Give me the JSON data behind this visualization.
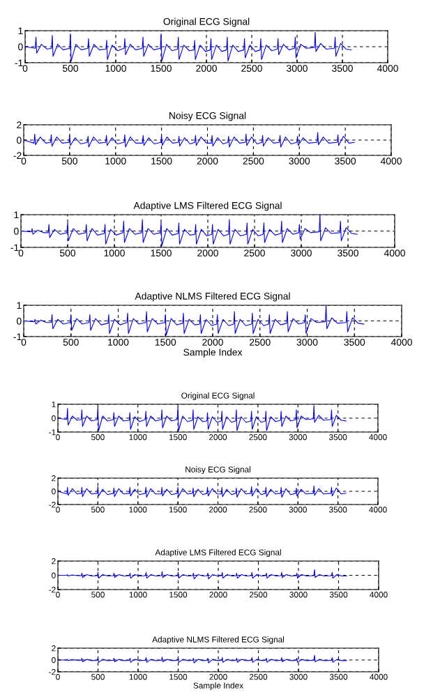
{
  "chart_data": [
    {
      "type": "line",
      "title": "Original ECG Signal",
      "xlim": [
        0,
        4000
      ],
      "xticks": [
        0,
        500,
        1000,
        1500,
        2000,
        2500,
        3000,
        3500,
        4000
      ],
      "ylim": [
        -1,
        1
      ],
      "yticks": [
        -1,
        0,
        1
      ],
      "grid": true,
      "line_style": "solid",
      "x": [
        0,
        112,
        120,
        128,
        180,
        240,
        292,
        300,
        308,
        360,
        420,
        492,
        500,
        508,
        560,
        620,
        692,
        700,
        708,
        760,
        820,
        892,
        900,
        908,
        960,
        1020,
        1092,
        1100,
        1108,
        1160,
        1220,
        1292,
        1300,
        1308,
        1360,
        1420,
        1492,
        1500,
        1508,
        1560,
        1620,
        1682,
        1690,
        1698,
        1750,
        1810,
        1862,
        1870,
        1878,
        1930,
        1990,
        2042,
        2050,
        2058,
        2110,
        2170,
        2222,
        2230,
        2238,
        2290,
        2350,
        2412,
        2420,
        2428,
        2480,
        2540,
        2592,
        2600,
        2608,
        2660,
        2720,
        2782,
        2790,
        2798,
        2850,
        2910,
        2972,
        2980,
        2988,
        3040,
        3100,
        3192,
        3200,
        3208,
        3260,
        3320,
        3412,
        3420,
        3428,
        3480,
        3540,
        3600
      ],
      "series": [
        {
          "color": "#0000ff",
          "values": [
            0,
            -0.1,
            0.6,
            -0.4,
            0.15,
            -0.15,
            -0.1,
            0.7,
            -0.6,
            0.15,
            -0.2,
            -0.1,
            0.8,
            -0.9,
            0.15,
            -0.2,
            -0.1,
            0.5,
            -0.6,
            0.15,
            -0.2,
            -0.15,
            0.4,
            -0.8,
            0.1,
            -0.25,
            -0.1,
            0.5,
            -0.5,
            0.15,
            -0.2,
            -0.1,
            0.6,
            -0.6,
            0.15,
            -0.2,
            -0.1,
            0.8,
            -0.9,
            0.15,
            -0.25,
            -0.15,
            0.6,
            -0.8,
            0.1,
            -0.25,
            -0.2,
            0.4,
            -0.8,
            0.1,
            -0.3,
            -0.2,
            0.5,
            -0.8,
            0.1,
            -0.3,
            -0.2,
            0.6,
            -0.9,
            0.1,
            -0.3,
            -0.2,
            0.5,
            -0.7,
            0.1,
            -0.3,
            -0.2,
            0.5,
            -0.8,
            0.1,
            -0.25,
            -0.15,
            0.5,
            -0.5,
            0.15,
            -0.2,
            -0.1,
            0.6,
            -0.7,
            0.15,
            -0.1,
            -0.05,
            0.9,
            -0.3,
            0.2,
            -0.15,
            -0.1,
            0.6,
            -0.6,
            0.2,
            -0.15,
            -0.2
          ]
        }
      ]
    },
    {
      "type": "line",
      "title": "Noisy ECG Signal",
      "xlim": [
        0,
        4000
      ],
      "xticks": [
        0,
        500,
        1000,
        1500,
        2000,
        2500,
        3000,
        3500,
        4000
      ],
      "ylim": [
        -2,
        2
      ],
      "yticks": [
        -2,
        0,
        2
      ],
      "grid": true,
      "line_style": "solid",
      "x": [
        0,
        112,
        120,
        128,
        180,
        240,
        292,
        300,
        308,
        360,
        420,
        492,
        500,
        508,
        560,
        620,
        692,
        700,
        708,
        760,
        820,
        892,
        900,
        908,
        960,
        1020,
        1092,
        1100,
        1108,
        1160,
        1220,
        1292,
        1300,
        1308,
        1360,
        1420,
        1492,
        1500,
        1508,
        1560,
        1620,
        1682,
        1690,
        1698,
        1750,
        1810,
        1862,
        1870,
        1878,
        1930,
        1990,
        2042,
        2050,
        2058,
        2110,
        2170,
        2222,
        2230,
        2238,
        2290,
        2350,
        2412,
        2420,
        2428,
        2480,
        2540,
        2592,
        2600,
        2608,
        2660,
        2720,
        2782,
        2790,
        2798,
        2850,
        2910,
        2972,
        2980,
        2988,
        3040,
        3100,
        3192,
        3200,
        3208,
        3260,
        3320,
        3412,
        3420,
        3428,
        3480,
        3540,
        3600
      ],
      "series": [
        {
          "color": "#0000ff",
          "values": [
            0,
            -0.4,
            0.8,
            -0.6,
            0.4,
            -0.4,
            -0.3,
            0.7,
            -0.8,
            0.4,
            -0.4,
            -0.3,
            0.6,
            -0.7,
            0.3,
            -0.5,
            -0.3,
            0.5,
            -0.9,
            0.4,
            -0.4,
            -0.3,
            0.6,
            -0.7,
            0.3,
            -0.5,
            -0.3,
            0.7,
            -0.9,
            0.4,
            -0.4,
            -0.4,
            0.6,
            -0.7,
            0.3,
            -0.5,
            -0.3,
            0.6,
            -0.7,
            0.4,
            -0.4,
            -0.3,
            0.5,
            -0.8,
            0.3,
            -0.5,
            -0.3,
            0.6,
            -0.7,
            0.4,
            -0.4,
            -0.4,
            0.6,
            -0.8,
            0.3,
            -0.5,
            -0.3,
            0.5,
            -0.9,
            0.4,
            -0.4,
            -0.3,
            0.8,
            -0.7,
            0.4,
            -0.5,
            -0.3,
            0.6,
            -0.8,
            0.3,
            -0.4,
            -0.3,
            0.6,
            -0.9,
            0.4,
            -0.5,
            -0.3,
            0.5,
            -0.7,
            0.3,
            -0.4,
            -0.3,
            1.0,
            -0.6,
            0.4,
            -0.4,
            -0.3,
            0.7,
            -0.7,
            0.5,
            -0.4,
            -0.3
          ]
        }
      ]
    },
    {
      "type": "line",
      "title": "Adaptive LMS Filtered ECG Signal",
      "xlim": [
        0,
        4000
      ],
      "xticks": [
        0,
        500,
        1000,
        1500,
        2000,
        2500,
        3000,
        3500,
        4000
      ],
      "ylim": [
        -1,
        1
      ],
      "yticks": [
        -1,
        0,
        1
      ],
      "grid": true,
      "line_style": "solid",
      "x": [
        0,
        112,
        120,
        128,
        180,
        240,
        292,
        300,
        308,
        360,
        420,
        492,
        500,
        508,
        560,
        620,
        692,
        700,
        708,
        760,
        820,
        892,
        900,
        908,
        960,
        1020,
        1092,
        1100,
        1108,
        1160,
        1220,
        1292,
        1300,
        1308,
        1360,
        1420,
        1492,
        1500,
        1508,
        1560,
        1620,
        1682,
        1690,
        1698,
        1750,
        1810,
        1862,
        1870,
        1878,
        1930,
        1990,
        2042,
        2050,
        2058,
        2110,
        2170,
        2222,
        2230,
        2238,
        2290,
        2350,
        2412,
        2420,
        2428,
        2480,
        2540,
        2592,
        2600,
        2608,
        2660,
        2720,
        2782,
        2790,
        2798,
        2850,
        2910,
        2972,
        2980,
        2988,
        3040,
        3100,
        3192,
        3200,
        3208,
        3260,
        3320,
        3412,
        3420,
        3428,
        3480,
        3540,
        3600
      ],
      "series": [
        {
          "color": "#0000ff",
          "values": [
            0,
            -0.05,
            0.15,
            -0.2,
            0.05,
            -0.1,
            -0.1,
            0.4,
            -0.4,
            0.1,
            -0.2,
            -0.1,
            0.5,
            -0.6,
            0.15,
            -0.2,
            -0.1,
            0.4,
            -0.6,
            0.15,
            -0.25,
            -0.15,
            0.4,
            -0.8,
            0.1,
            -0.25,
            -0.1,
            0.6,
            -0.7,
            0.15,
            -0.2,
            -0.1,
            0.7,
            -0.7,
            0.15,
            -0.2,
            -0.1,
            0.5,
            -0.9,
            0.15,
            -0.25,
            -0.15,
            0.5,
            -0.8,
            0.1,
            -0.25,
            -0.2,
            0.4,
            -0.8,
            0.1,
            -0.3,
            -0.2,
            0.4,
            -0.8,
            0.1,
            -0.3,
            -0.2,
            0.7,
            -0.8,
            0.1,
            -0.3,
            -0.2,
            0.5,
            -0.8,
            0.1,
            -0.3,
            -0.2,
            0.5,
            -0.7,
            0.1,
            -0.25,
            -0.15,
            0.6,
            -0.7,
            0.15,
            -0.2,
            -0.1,
            0.4,
            -0.5,
            0.15,
            -0.1,
            -0.05,
            1.0,
            -0.6,
            0.2,
            -0.15,
            -0.1,
            0.6,
            -0.6,
            0.2,
            -0.15,
            -0.2
          ]
        }
      ]
    },
    {
      "type": "line",
      "title": "Adaptive NLMS Filtered ECG Signal",
      "xlabel": "Sample Index",
      "xlim": [
        0,
        4000
      ],
      "xticks": [
        0,
        500,
        1000,
        1500,
        2000,
        2500,
        3000,
        3500,
        4000
      ],
      "ylim": [
        -1,
        1
      ],
      "yticks": [
        -1,
        0,
        1
      ],
      "grid": true,
      "line_style": "solid",
      "x": [
        0,
        112,
        120,
        128,
        180,
        240,
        292,
        300,
        308,
        360,
        420,
        492,
        500,
        508,
        560,
        620,
        692,
        700,
        708,
        760,
        820,
        892,
        900,
        908,
        960,
        1020,
        1092,
        1100,
        1108,
        1160,
        1220,
        1292,
        1300,
        1308,
        1360,
        1420,
        1492,
        1500,
        1508,
        1560,
        1620,
        1682,
        1690,
        1698,
        1750,
        1810,
        1862,
        1870,
        1878,
        1930,
        1990,
        2042,
        2050,
        2058,
        2110,
        2170,
        2222,
        2230,
        2238,
        2290,
        2350,
        2412,
        2420,
        2428,
        2480,
        2540,
        2592,
        2600,
        2608,
        2660,
        2720,
        2782,
        2790,
        2798,
        2850,
        2910,
        2972,
        2980,
        2988,
        3040,
        3100,
        3192,
        3200,
        3208,
        3260,
        3320,
        3412,
        3420,
        3428,
        3480,
        3540,
        3600
      ],
      "series": [
        {
          "color": "#0000ff",
          "values": [
            0,
            -0.05,
            0.1,
            -0.2,
            0.05,
            -0.1,
            -0.1,
            0.4,
            -0.5,
            0.1,
            -0.2,
            -0.1,
            0.4,
            -0.6,
            0.15,
            -0.2,
            -0.1,
            0.4,
            -0.6,
            0.15,
            -0.25,
            -0.15,
            0.4,
            -0.8,
            0.1,
            -0.25,
            -0.1,
            0.5,
            -0.8,
            0.15,
            -0.2,
            -0.1,
            0.6,
            -0.7,
            0.15,
            -0.2,
            -0.1,
            0.4,
            -0.9,
            0.15,
            -0.25,
            -0.15,
            0.5,
            -0.8,
            0.1,
            -0.25,
            -0.2,
            0.4,
            -0.8,
            0.1,
            -0.3,
            -0.2,
            0.4,
            -0.8,
            0.1,
            -0.3,
            -0.2,
            0.6,
            -0.8,
            0.1,
            -0.3,
            -0.2,
            0.5,
            -0.8,
            0.1,
            -0.3,
            -0.2,
            0.4,
            -0.8,
            0.1,
            -0.25,
            -0.15,
            0.6,
            -0.7,
            0.15,
            -0.2,
            -0.1,
            0.4,
            -0.8,
            0.15,
            -0.1,
            -0.05,
            1.0,
            -0.5,
            0.2,
            -0.15,
            -0.1,
            0.6,
            -0.7,
            0.2,
            -0.15,
            -0.2
          ]
        }
      ]
    },
    {
      "type": "line",
      "title": "Original ECG Signal",
      "xlim": [
        0,
        4000
      ],
      "xticks": [
        0,
        500,
        1000,
        1500,
        2000,
        2500,
        3000,
        3500,
        4000
      ],
      "ylim": [
        -1,
        1
      ],
      "yticks": [
        -1,
        0,
        1
      ],
      "grid": true,
      "line_style": "solid",
      "x": [
        0,
        112,
        120,
        128,
        180,
        240,
        292,
        300,
        308,
        360,
        420,
        492,
        500,
        508,
        560,
        620,
        692,
        700,
        708,
        760,
        820,
        892,
        900,
        908,
        960,
        1020,
        1092,
        1100,
        1108,
        1160,
        1220,
        1292,
        1300,
        1308,
        1360,
        1420,
        1492,
        1500,
        1508,
        1560,
        1620,
        1682,
        1690,
        1698,
        1750,
        1810,
        1862,
        1870,
        1878,
        1930,
        1990,
        2042,
        2050,
        2058,
        2110,
        2170,
        2222,
        2230,
        2238,
        2290,
        2350,
        2412,
        2420,
        2428,
        2480,
        2540,
        2592,
        2600,
        2608,
        2660,
        2720,
        2782,
        2790,
        2798,
        2850,
        2910,
        2972,
        2980,
        2988,
        3040,
        3100,
        3192,
        3200,
        3208,
        3260,
        3320,
        3412,
        3420,
        3428,
        3480,
        3540,
        3600
      ],
      "series": [
        {
          "color": "#0000ff",
          "values": [
            0,
            -0.1,
            0.7,
            -0.5,
            0.15,
            -0.15,
            -0.1,
            0.6,
            -0.6,
            0.15,
            -0.2,
            -0.1,
            0.8,
            -0.9,
            0.15,
            -0.2,
            -0.1,
            0.4,
            -0.6,
            0.15,
            -0.2,
            -0.15,
            0.4,
            -0.8,
            0.1,
            -0.25,
            -0.1,
            0.5,
            -0.6,
            0.15,
            -0.2,
            -0.1,
            0.6,
            -0.7,
            0.15,
            -0.2,
            -0.1,
            0.8,
            -0.9,
            0.15,
            -0.25,
            -0.15,
            0.6,
            -0.8,
            0.1,
            -0.25,
            -0.2,
            0.4,
            -0.8,
            0.1,
            -0.3,
            -0.2,
            0.5,
            -0.8,
            0.1,
            -0.3,
            -0.2,
            0.6,
            -0.9,
            0.1,
            -0.3,
            -0.2,
            0.5,
            -0.8,
            0.1,
            -0.3,
            -0.2,
            0.5,
            -0.9,
            0.1,
            -0.25,
            -0.15,
            0.5,
            -0.6,
            0.15,
            -0.2,
            -0.1,
            0.6,
            -0.7,
            0.15,
            -0.1,
            -0.05,
            0.9,
            -0.3,
            0.2,
            -0.15,
            -0.1,
            0.6,
            -0.6,
            0.2,
            -0.15,
            -0.2
          ]
        }
      ]
    },
    {
      "type": "line",
      "title": "Noisy ECG Signal",
      "xlim": [
        0,
        4000
      ],
      "xticks": [
        0,
        500,
        1000,
        1500,
        2000,
        2500,
        3000,
        3500,
        4000
      ],
      "ylim": [
        -2,
        2
      ],
      "yticks": [
        -2,
        0,
        2
      ],
      "grid": true,
      "line_style": "solid",
      "x": [
        0,
        112,
        120,
        128,
        180,
        240,
        292,
        300,
        308,
        360,
        420,
        492,
        500,
        508,
        560,
        620,
        692,
        700,
        708,
        760,
        820,
        892,
        900,
        908,
        960,
        1020,
        1092,
        1100,
        1108,
        1160,
        1220,
        1292,
        1300,
        1308,
        1360,
        1420,
        1492,
        1500,
        1508,
        1560,
        1620,
        1682,
        1690,
        1698,
        1750,
        1810,
        1862,
        1870,
        1878,
        1930,
        1990,
        2042,
        2050,
        2058,
        2110,
        2170,
        2222,
        2230,
        2238,
        2290,
        2350,
        2412,
        2420,
        2428,
        2480,
        2540,
        2592,
        2600,
        2608,
        2660,
        2720,
        2782,
        2790,
        2798,
        2850,
        2910,
        2972,
        2980,
        2988,
        3040,
        3100,
        3192,
        3200,
        3208,
        3260,
        3320,
        3412,
        3420,
        3428,
        3480,
        3540,
        3600
      ],
      "series": [
        {
          "color": "#0000ff",
          "values": [
            0,
            -0.4,
            0.6,
            -0.6,
            0.4,
            -0.4,
            -0.3,
            0.6,
            -0.8,
            0.4,
            -0.4,
            -0.3,
            0.7,
            -0.7,
            0.3,
            -0.5,
            -0.3,
            0.5,
            -0.8,
            0.4,
            -0.4,
            -0.3,
            0.6,
            -0.7,
            0.3,
            -0.5,
            -0.3,
            0.6,
            -0.9,
            0.4,
            -0.4,
            -0.4,
            0.6,
            -0.7,
            0.3,
            -0.5,
            -0.3,
            0.6,
            -0.8,
            0.4,
            -0.4,
            -0.3,
            0.5,
            -0.8,
            0.3,
            -0.5,
            -0.3,
            0.6,
            -0.7,
            0.4,
            -0.4,
            -0.4,
            0.6,
            -0.8,
            0.3,
            -0.5,
            -0.3,
            0.5,
            -0.9,
            0.4,
            -0.4,
            -0.3,
            0.7,
            -0.7,
            0.4,
            -0.5,
            -0.3,
            0.6,
            -0.8,
            0.3,
            -0.4,
            -0.3,
            0.6,
            -0.9,
            0.4,
            -0.5,
            -0.3,
            0.5,
            -0.7,
            0.3,
            -0.4,
            -0.3,
            0.8,
            -0.6,
            0.4,
            -0.4,
            -0.3,
            0.6,
            -0.7,
            0.5,
            -0.4,
            -0.3
          ]
        }
      ]
    },
    {
      "type": "line",
      "title": "Adaptive LMS Filtered ECG Signal",
      "xlim": [
        0,
        4000
      ],
      "xticks": [
        0,
        500,
        1000,
        1500,
        2000,
        2500,
        3000,
        3500,
        4000
      ],
      "ylim": [
        -2,
        2
      ],
      "yticks": [
        -2,
        0,
        2
      ],
      "grid": true,
      "line_style": "solid",
      "x": [
        0,
        112,
        120,
        128,
        180,
        240,
        292,
        300,
        308,
        360,
        420,
        492,
        500,
        508,
        560,
        620,
        692,
        700,
        708,
        760,
        820,
        892,
        900,
        908,
        960,
        1020,
        1092,
        1100,
        1108,
        1160,
        1220,
        1292,
        1300,
        1308,
        1360,
        1420,
        1492,
        1500,
        1508,
        1560,
        1620,
        1682,
        1690,
        1698,
        1750,
        1810,
        1862,
        1870,
        1878,
        1930,
        1990,
        2042,
        2050,
        2058,
        2110,
        2170,
        2222,
        2230,
        2238,
        2290,
        2350,
        2412,
        2420,
        2428,
        2480,
        2540,
        2592,
        2600,
        2608,
        2660,
        2720,
        2782,
        2790,
        2798,
        2850,
        2910,
        2972,
        2980,
        2988,
        3040,
        3100,
        3192,
        3200,
        3208,
        3260,
        3320,
        3412,
        3420,
        3428,
        3480,
        3540,
        3600
      ],
      "series": [
        {
          "color": "#0000ff",
          "values": [
            0,
            0,
            0.1,
            -0.1,
            0.05,
            -0.05,
            -0.05,
            0.3,
            -0.3,
            0.1,
            -0.1,
            -0.05,
            0.4,
            -0.4,
            0.1,
            -0.1,
            -0.05,
            0.3,
            -0.3,
            0.1,
            -0.1,
            -0.05,
            0.3,
            -0.4,
            0.1,
            -0.1,
            -0.05,
            0.4,
            -0.4,
            0.1,
            -0.1,
            -0.05,
            0.5,
            -0.3,
            0.1,
            -0.1,
            -0.05,
            0.4,
            -0.4,
            0.1,
            -0.1,
            -0.05,
            0.3,
            -0.5,
            0.1,
            -0.1,
            -0.05,
            0.3,
            -0.5,
            0.1,
            -0.1,
            -0.05,
            0.4,
            -0.4,
            0.1,
            -0.1,
            -0.05,
            0.3,
            -0.4,
            0.1,
            -0.1,
            -0.05,
            0.4,
            -0.4,
            0.1,
            -0.1,
            -0.05,
            0.3,
            -0.4,
            0.1,
            -0.1,
            -0.05,
            0.4,
            -0.3,
            0.1,
            -0.1,
            -0.05,
            0.3,
            -0.4,
            0.1,
            -0.1,
            -0.05,
            0.8,
            -0.3,
            0.1,
            -0.1,
            -0.05,
            0.4,
            -0.4,
            0.1,
            -0.1,
            -0.1
          ]
        }
      ]
    },
    {
      "type": "line",
      "title": "Adaptive NLMS Filtered ECG Signal",
      "xlabel": "Sample Index",
      "xlim": [
        0,
        4000
      ],
      "xticks": [
        0,
        500,
        1000,
        1500,
        2000,
        2500,
        3000,
        3500,
        4000
      ],
      "ylim": [
        -2,
        2
      ],
      "yticks": [
        -2,
        0,
        2
      ],
      "grid": true,
      "line_style": "solid",
      "x": [
        0,
        112,
        120,
        128,
        180,
        240,
        292,
        300,
        308,
        360,
        420,
        492,
        500,
        508,
        560,
        620,
        692,
        700,
        708,
        760,
        820,
        892,
        900,
        908,
        960,
        1020,
        1092,
        1100,
        1108,
        1160,
        1220,
        1292,
        1300,
        1308,
        1360,
        1420,
        1492,
        1500,
        1508,
        1560,
        1620,
        1682,
        1690,
        1698,
        1750,
        1810,
        1862,
        1870,
        1878,
        1930,
        1990,
        2042,
        2050,
        2058,
        2110,
        2170,
        2222,
        2230,
        2238,
        2290,
        2350,
        2412,
        2420,
        2428,
        2480,
        2540,
        2592,
        2600,
        2608,
        2660,
        2720,
        2782,
        2790,
        2798,
        2850,
        2910,
        2972,
        2980,
        2988,
        3040,
        3100,
        3192,
        3200,
        3208,
        3260,
        3320,
        3412,
        3420,
        3428,
        3480,
        3540,
        3600
      ],
      "series": [
        {
          "color": "#0000ff",
          "values": [
            0,
            0,
            0.1,
            -0.1,
            0.05,
            -0.05,
            -0.05,
            0.3,
            -0.3,
            0.1,
            -0.1,
            -0.05,
            0.4,
            -0.4,
            0.1,
            -0.1,
            -0.05,
            0.3,
            -0.3,
            0.1,
            -0.1,
            -0.05,
            0.3,
            -0.4,
            0.1,
            -0.1,
            -0.05,
            0.4,
            -0.4,
            0.1,
            -0.1,
            -0.05,
            0.5,
            -0.3,
            0.1,
            -0.1,
            -0.05,
            0.4,
            -0.4,
            0.1,
            -0.1,
            -0.05,
            0.3,
            -0.5,
            0.1,
            -0.1,
            -0.05,
            0.3,
            -0.5,
            0.1,
            -0.1,
            -0.05,
            0.4,
            -0.4,
            0.1,
            -0.1,
            -0.05,
            0.3,
            -0.4,
            0.1,
            -0.1,
            -0.05,
            0.4,
            -0.4,
            0.1,
            -0.1,
            -0.05,
            0.3,
            -0.4,
            0.1,
            -0.1,
            -0.05,
            0.4,
            -0.3,
            0.1,
            -0.1,
            -0.05,
            0.3,
            -0.4,
            0.1,
            -0.1,
            -0.05,
            0.8,
            -0.3,
            0.1,
            -0.1,
            -0.05,
            0.4,
            -0.4,
            0.1,
            -0.1,
            -0.1
          ]
        }
      ]
    }
  ]
}
